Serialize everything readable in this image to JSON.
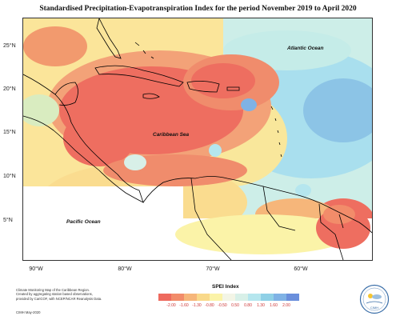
{
  "title": "Standardised Precipitation-Evapotranspiration Index for the period November 2019 to April 2020",
  "lat_labels": [
    "25°N",
    "20°N",
    "15°N",
    "10°N",
    "5°N"
  ],
  "lon_labels": [
    "90°W",
    "80°W",
    "70°W",
    "60°W"
  ],
  "ocean_labels": {
    "atlantic": "Atlantic Ocean",
    "caribbean": "Caribbean Sea",
    "pacific": "Pacific Ocean"
  },
  "credit_lines": [
    "Climate Monitoring Map of the Caribbean Region.",
    "Created by aggregating station based observations,",
    "provided by CariCOF, with NCEP/NCAR Reanalysis Data."
  ],
  "cimh_date": "CIMH May-2020",
  "legend": {
    "title": "SPEI Index",
    "ticks": [
      "-2.00",
      "-1.60",
      "-1.30",
      "-0.80",
      "-0.50",
      "0.50",
      "0.80",
      "1.30",
      "1.60",
      "2.00"
    ],
    "colors": [
      "#ee6a5e",
      "#f28c6a",
      "#f6b67a",
      "#f9d98a",
      "#fbf3a8",
      "#f3f5e6",
      "#d8f0e8",
      "#b5e6ee",
      "#8fd0e6",
      "#7fb2e5",
      "#6a8fdc"
    ]
  },
  "logo_text": "CIMH"
}
